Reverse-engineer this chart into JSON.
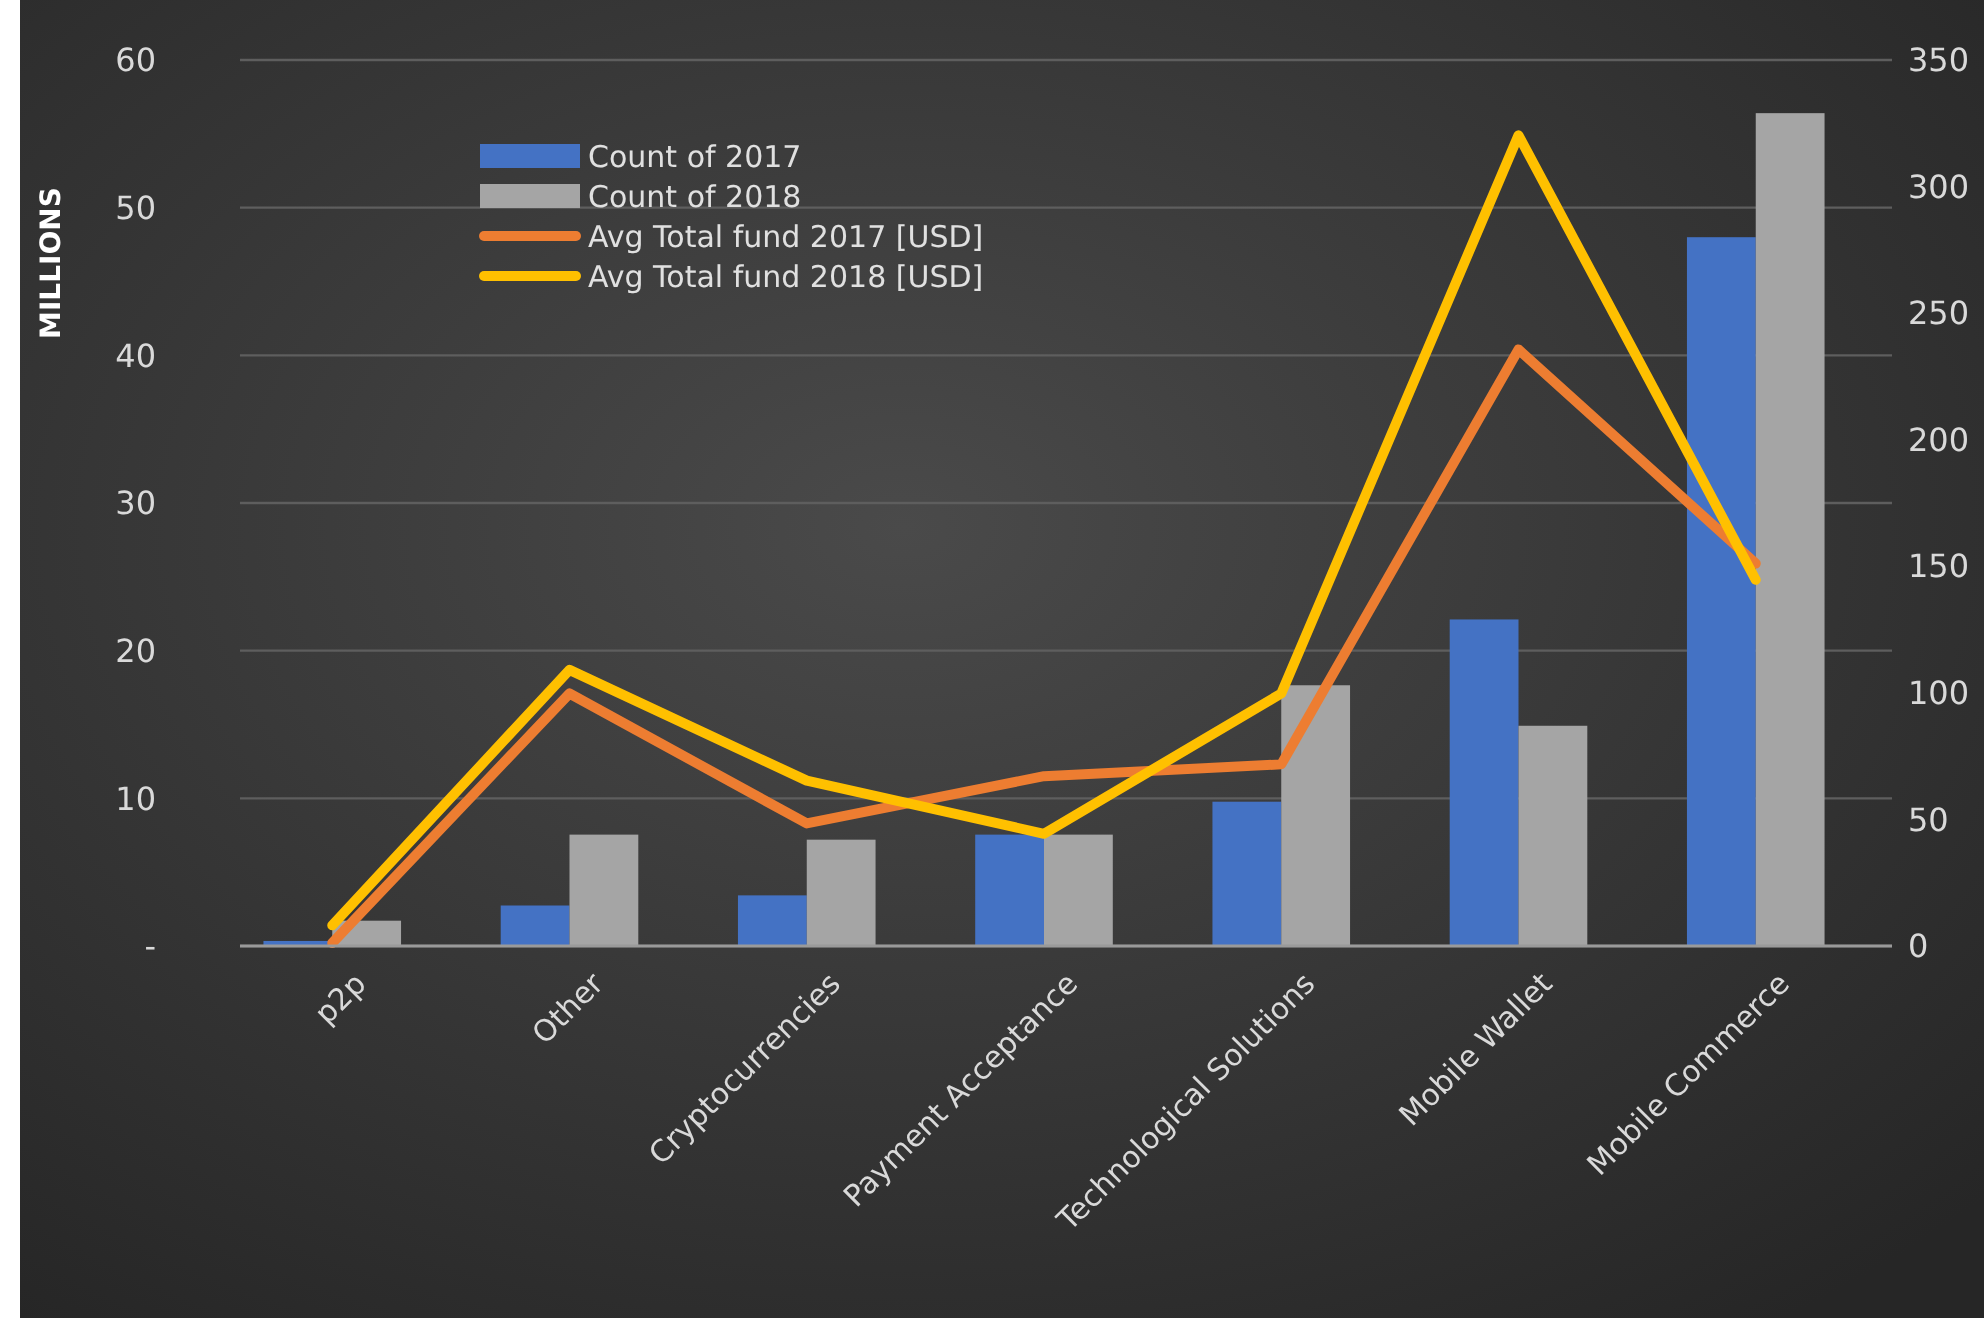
{
  "chart_data": {
    "type": "bar",
    "ylabel": "MILLIONS",
    "categories": [
      "p2p",
      "Other",
      "Cryptocurrencies",
      "Payment Acceptance",
      "Technological Solutions",
      "Mobile Wallet",
      "Mobile Commerce"
    ],
    "series": [
      {
        "name": "Count of 2017",
        "axis": "y2",
        "color": "#4472c4",
        "values": [
          2,
          16,
          20,
          44,
          57,
          129,
          280
        ]
      },
      {
        "name": "Count of 2018",
        "axis": "y2",
        "color": "#a5a5a5",
        "values": [
          10,
          44,
          42,
          44,
          103,
          87,
          329
        ]
      },
      {
        "name": "Avg Total fund 2017 [USD]",
        "type": "line",
        "axis": "y",
        "color": "#ed7d31",
        "values": [
          0.2,
          17.1,
          8.3,
          11.5,
          12.3,
          40.4,
          25.9
        ]
      },
      {
        "name": "Avg Total fund 2018 [USD]",
        "type": "line",
        "axis": "y",
        "color": "#ffc000",
        "values": [
          1.4,
          18.7,
          11.2,
          7.6,
          17.1,
          54.9,
          24.8
        ]
      }
    ],
    "ylim": [
      0,
      60
    ],
    "yticks": [
      {
        "value": 0,
        "label": "-"
      },
      10,
      20,
      30,
      40,
      50,
      60
    ],
    "y2lim": [
      0,
      350
    ],
    "y2ticks": [
      0,
      50,
      100,
      150,
      200,
      250,
      300,
      350
    ],
    "grid": "y",
    "legend": "top left",
    "marker": "none",
    "line_style": "solid"
  }
}
